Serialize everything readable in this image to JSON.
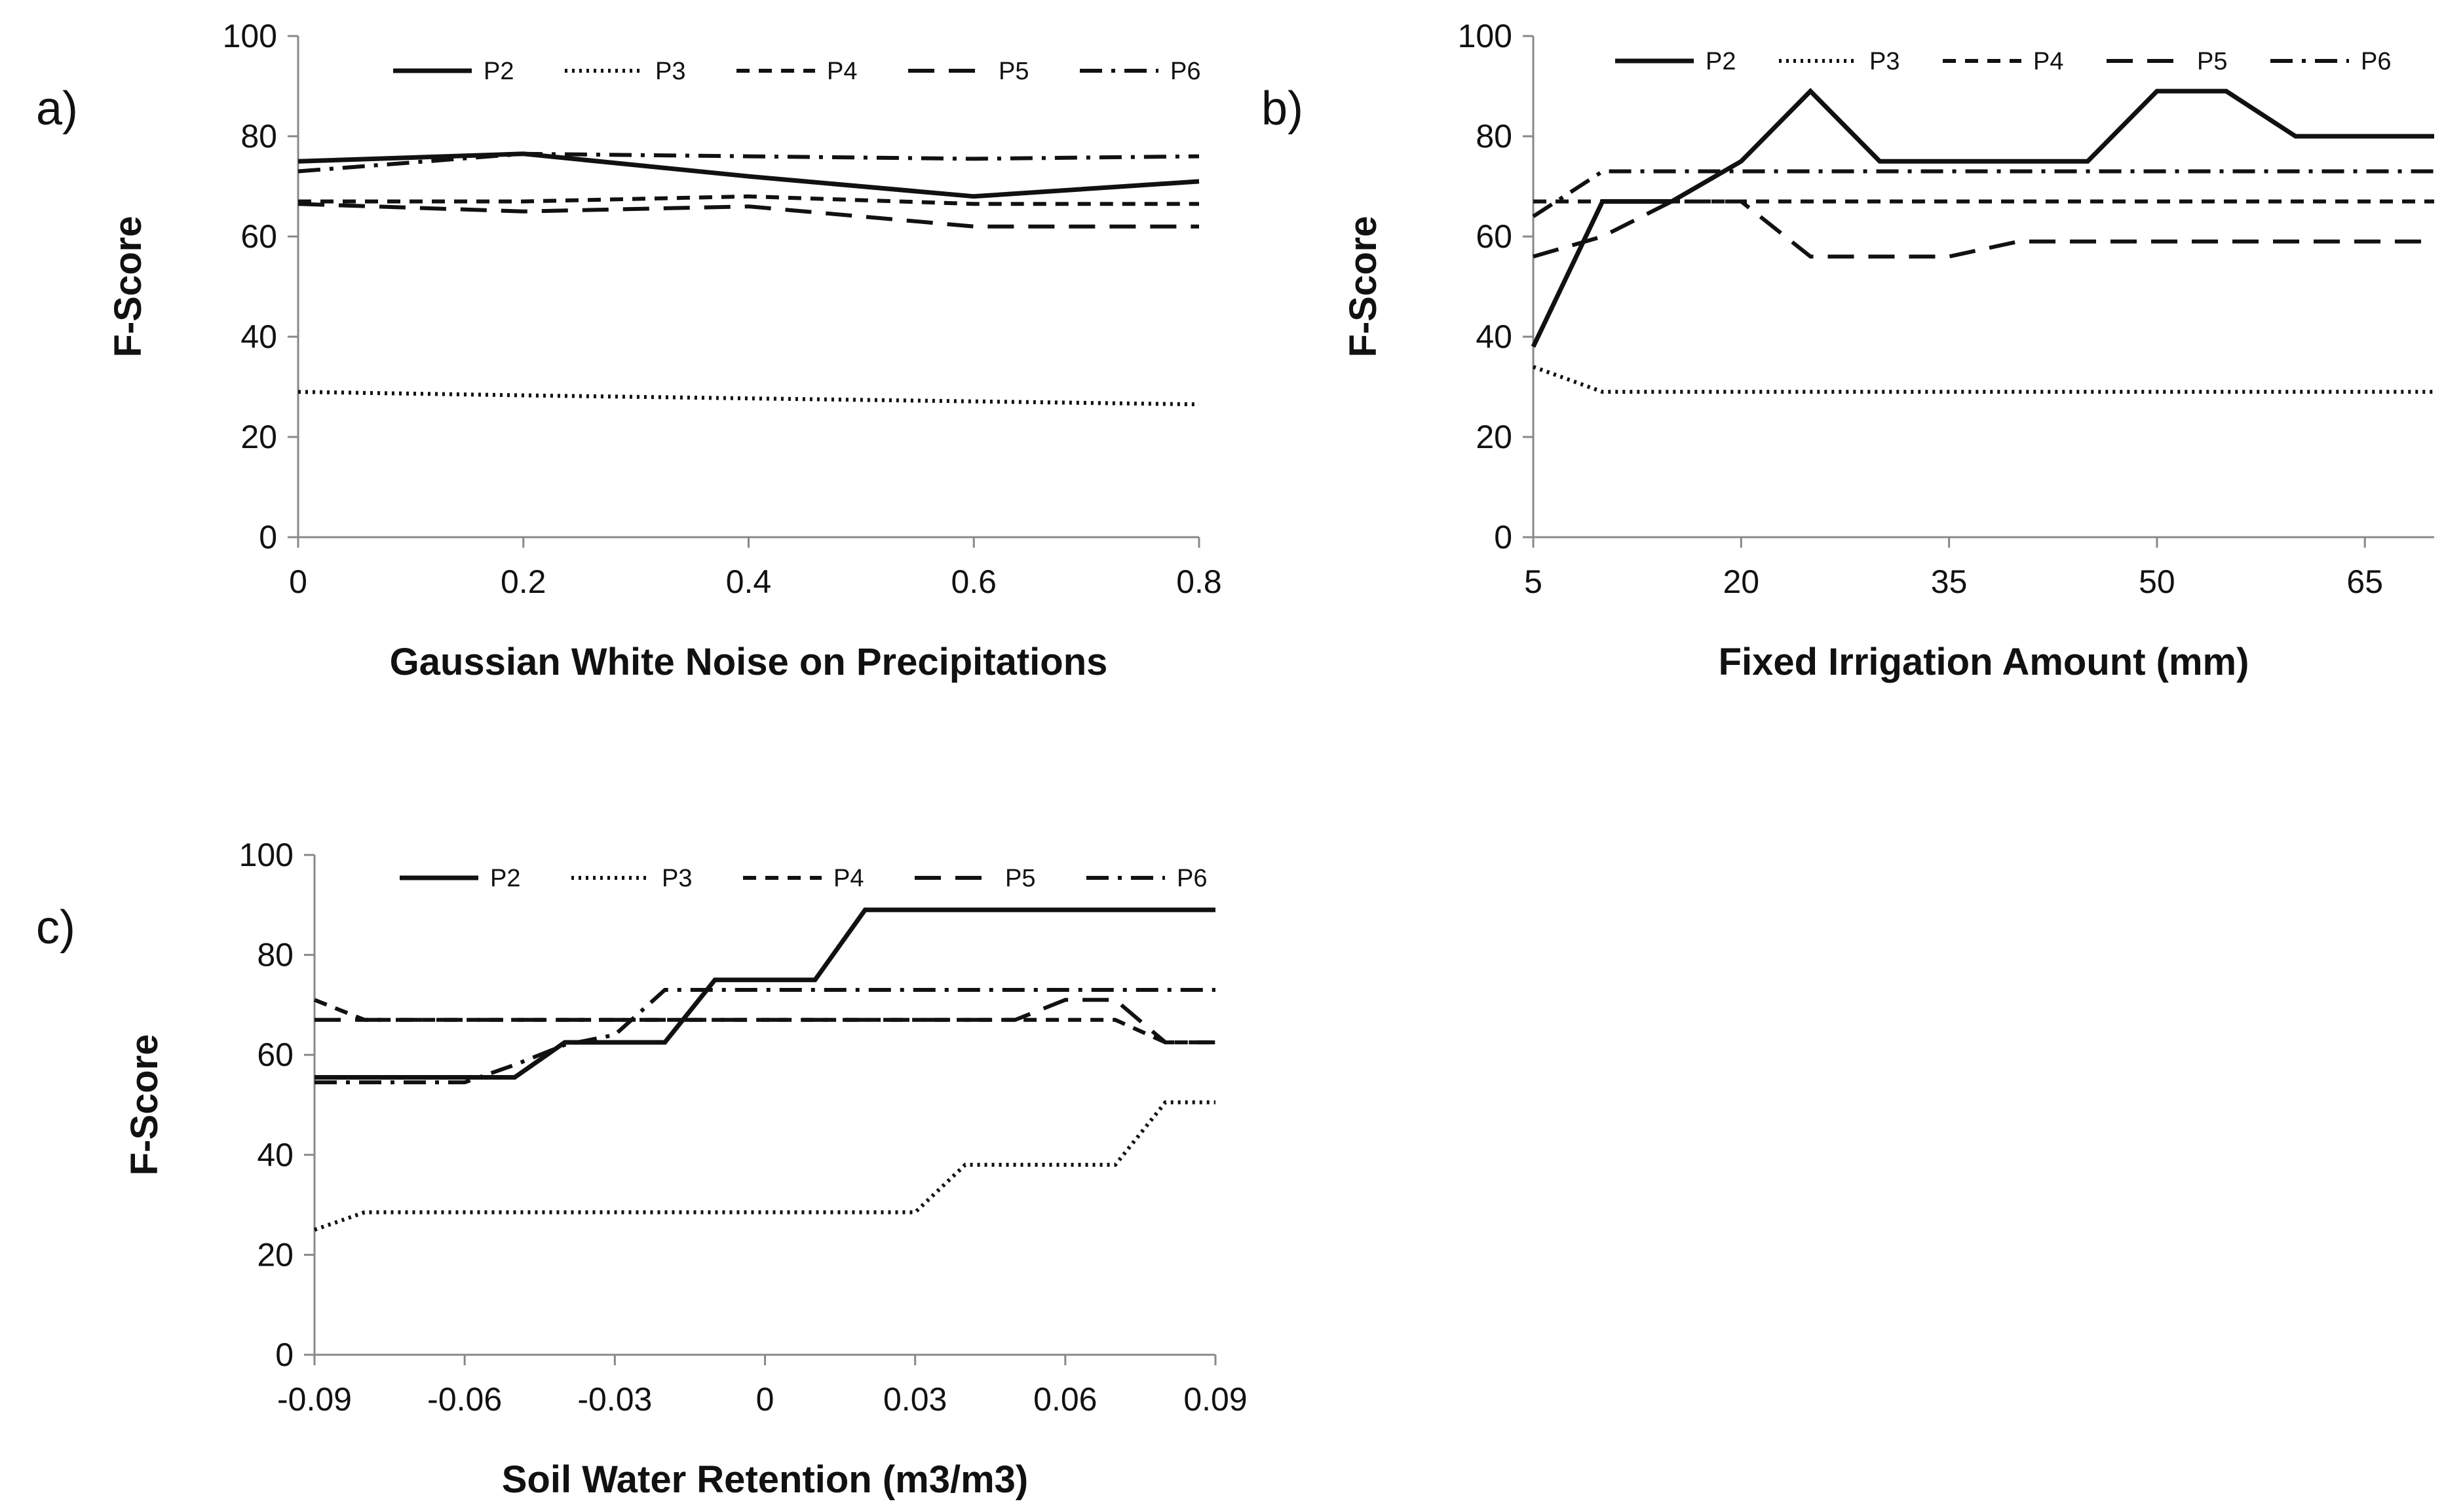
{
  "chart_data": [
    {
      "type": "line",
      "panel_label": "a)",
      "xlabel": "Gaussian White Noise on Precipitations",
      "ylabel": "F-Score",
      "xlim": [
        0,
        0.8
      ],
      "ylim": [
        0,
        100
      ],
      "xticks": [
        0,
        0.2,
        0.4,
        0.6,
        0.8
      ],
      "xtick_labels": [
        "0",
        "0.2",
        "0.4",
        "0.6",
        "0.8"
      ],
      "yticks": [
        0,
        20,
        40,
        60,
        80,
        100
      ],
      "ytick_labels": [
        "0",
        "20",
        "40",
        "60",
        "80",
        "100"
      ],
      "grid": false,
      "legend_position": "top",
      "x": [
        0,
        0.2,
        0.4,
        0.6,
        0.8
      ],
      "series": [
        {
          "name": "P2",
          "style": "solid",
          "values": [
            75,
            76.5,
            72,
            68,
            71
          ]
        },
        {
          "name": "P3",
          "style": "dotted",
          "values": [
            29,
            28.3,
            27.7,
            27.1,
            26.5
          ]
        },
        {
          "name": "P4",
          "style": "short-dash",
          "values": [
            67,
            67,
            68,
            66.5,
            66.5
          ]
        },
        {
          "name": "P5",
          "style": "long-dash",
          "values": [
            66.5,
            65,
            66,
            62,
            62
          ]
        },
        {
          "name": "P6",
          "style": "dash-dot",
          "values": [
            73,
            76.5,
            76,
            75.5,
            76
          ]
        }
      ]
    },
    {
      "type": "line",
      "panel_label": "b)",
      "xlabel": "Fixed Irrigation Amount (mm)",
      "ylabel": "F-Score",
      "xlim": [
        5,
        70
      ],
      "ylim": [
        0,
        100
      ],
      "xticks": [
        5,
        20,
        35,
        50,
        65
      ],
      "xtick_labels": [
        "5",
        "20",
        "35",
        "50",
        "65"
      ],
      "yticks": [
        0,
        20,
        40,
        60,
        80,
        100
      ],
      "ytick_labels": [
        "0",
        "20",
        "40",
        "60",
        "80",
        "100"
      ],
      "grid": false,
      "legend_position": "top",
      "x": [
        5,
        10,
        15,
        20,
        25,
        30,
        35,
        40,
        45,
        50,
        55,
        60,
        65,
        70
      ],
      "series": [
        {
          "name": "P2",
          "style": "solid",
          "values": [
            38,
            67,
            67,
            75,
            89,
            75,
            75,
            75,
            75,
            89,
            89,
            80,
            80,
            80
          ]
        },
        {
          "name": "P3",
          "style": "dotted",
          "values": [
            34,
            29,
            29,
            29,
            29,
            29,
            29,
            29,
            29,
            29,
            29,
            29,
            29,
            29
          ]
        },
        {
          "name": "P4",
          "style": "short-dash",
          "values": [
            67,
            67,
            67,
            67,
            67,
            67,
            67,
            67,
            67,
            67,
            67,
            67,
            67,
            67
          ]
        },
        {
          "name": "P5",
          "style": "long-dash",
          "values": [
            56,
            60,
            67,
            67,
            56,
            56,
            56,
            59,
            59,
            59,
            59,
            59,
            59,
            59
          ]
        },
        {
          "name": "P6",
          "style": "dash-dot",
          "values": [
            64,
            73,
            73,
            73,
            73,
            73,
            73,
            73,
            73,
            73,
            73,
            73,
            73,
            73
          ]
        }
      ]
    },
    {
      "type": "line",
      "panel_label": "c)",
      "xlabel": "Soil Water Retention (m3/m3)",
      "ylabel": "F-Score",
      "xlim": [
        -0.09,
        0.09
      ],
      "ylim": [
        0,
        100
      ],
      "xticks": [
        -0.09,
        -0.06,
        -0.03,
        0,
        0.03,
        0.06,
        0.09
      ],
      "xtick_labels": [
        "-0.09",
        "-0.06",
        "-0.03",
        "0",
        "0.03",
        "0.06",
        "0.09"
      ],
      "yticks": [
        0,
        20,
        40,
        60,
        80,
        100
      ],
      "ytick_labels": [
        "0",
        "20",
        "40",
        "60",
        "80",
        "100"
      ],
      "grid": false,
      "legend_position": "top",
      "x": [
        -0.09,
        -0.08,
        -0.07,
        -0.06,
        -0.05,
        -0.04,
        -0.03,
        -0.02,
        -0.01,
        0,
        0.01,
        0.02,
        0.03,
        0.04,
        0.05,
        0.06,
        0.07,
        0.08,
        0.09
      ],
      "series": [
        {
          "name": "P2",
          "style": "solid",
          "values": [
            55.5,
            55.5,
            55.5,
            55.5,
            55.5,
            62.5,
            62.5,
            62.5,
            75,
            75,
            75,
            89,
            89,
            89,
            89,
            89,
            89,
            89,
            89
          ]
        },
        {
          "name": "P3",
          "style": "dotted",
          "values": [
            25,
            28.5,
            28.5,
            28.5,
            28.5,
            28.5,
            28.5,
            28.5,
            28.5,
            28.5,
            28.5,
            28.5,
            28.5,
            38,
            38,
            38,
            38,
            50.5,
            50.5
          ]
        },
        {
          "name": "P4",
          "style": "short-dash",
          "values": [
            71,
            67,
            67,
            67,
            67,
            67,
            67,
            67,
            67,
            67,
            67,
            67,
            67,
            67,
            67,
            67,
            67,
            62.5,
            62.5
          ]
        },
        {
          "name": "P5",
          "style": "long-dash",
          "values": [
            67,
            67,
            67,
            67,
            67,
            67,
            67,
            67,
            67,
            67,
            67,
            67,
            67,
            67,
            67,
            71,
            71,
            62.5,
            62.5
          ]
        },
        {
          "name": "P6",
          "style": "dash-dot",
          "values": [
            54.5,
            54.5,
            54.5,
            54.5,
            58,
            62,
            64,
            73,
            73,
            73,
            73,
            73,
            73,
            73,
            73,
            73,
            73,
            73,
            73
          ]
        }
      ]
    }
  ]
}
